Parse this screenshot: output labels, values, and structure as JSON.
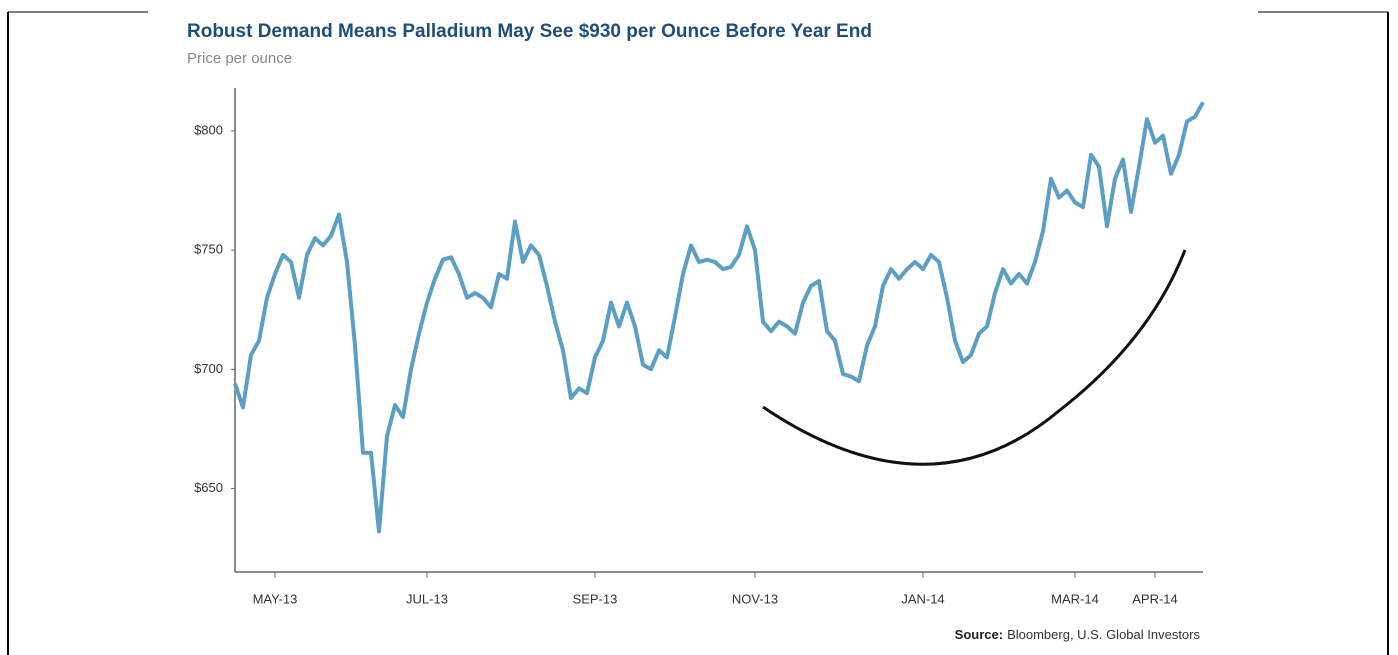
{
  "chart_data": {
    "type": "line",
    "title": "Robust Demand Means Palladium May See $930 per Ounce Before Year End",
    "subtitle": "Price per ounce",
    "source_label": "Source:",
    "source_text": "Bloomberg, U.S. Global Investors",
    "categories": [
      null,
      null,
      null,
      null,
      null,
      "MAY-13",
      null,
      null,
      null,
      null,
      null,
      null,
      null,
      null,
      null,
      null,
      null,
      null,
      null,
      null,
      null,
      null,
      null,
      null,
      "JUL-13",
      null,
      null,
      null,
      null,
      null,
      null,
      null,
      null,
      null,
      null,
      null,
      null,
      null,
      null,
      null,
      null,
      null,
      null,
      null,
      null,
      "SEP-13",
      null,
      null,
      null,
      null,
      null,
      null,
      null,
      null,
      null,
      null,
      null,
      null,
      null,
      null,
      null,
      null,
      null,
      null,
      null,
      "NOV-13",
      null,
      null,
      null,
      null,
      null,
      null,
      null,
      null,
      null,
      null,
      null,
      null,
      null,
      null,
      null,
      null,
      null,
      null,
      null,
      null,
      "JAN-14",
      null,
      null,
      null,
      null,
      null,
      null,
      null,
      null,
      null,
      null,
      null,
      null,
      null,
      null,
      null,
      null,
      null,
      null,
      "MAR-14",
      null,
      null,
      null,
      null,
      null,
      null,
      null,
      null,
      null,
      "APR-14",
      null,
      null,
      null,
      null,
      null,
      null
    ],
    "series": [
      {
        "color": "#5b9fc4",
        "values": [
          694,
          684,
          706,
          712,
          730,
          740,
          748,
          745,
          730,
          748,
          755,
          752,
          756,
          765,
          745,
          710,
          665,
          665,
          632,
          672,
          685,
          680,
          700,
          715,
          728,
          738,
          746,
          747,
          740,
          730,
          732,
          730,
          726,
          740,
          738,
          762,
          745,
          752,
          748,
          735,
          720,
          708,
          688,
          692,
          690,
          705,
          712,
          728,
          718,
          728,
          718,
          702,
          700,
          708,
          705,
          722,
          740,
          752,
          745,
          746,
          745,
          742,
          743,
          748,
          760,
          750,
          720,
          716,
          720,
          718,
          715,
          728,
          735,
          737,
          716,
          712,
          698,
          697,
          695,
          710,
          718,
          735,
          742,
          738,
          742,
          745,
          742,
          748,
          745,
          730,
          712,
          703,
          706,
          715,
          718,
          732,
          742,
          736,
          740,
          736,
          745,
          758,
          780,
          772,
          775,
          770,
          768,
          790,
          785,
          760,
          780,
          788,
          766,
          785,
          805,
          795,
          798,
          782,
          790,
          804,
          806,
          812
        ]
      }
    ],
    "ylim": [
      615,
      818
    ],
    "yticks": [
      {
        "value": 650,
        "label": "$650"
      },
      {
        "value": 700,
        "label": "$700"
      },
      {
        "value": 750,
        "label": "$750"
      },
      {
        "value": 800,
        "label": "$800"
      }
    ]
  }
}
